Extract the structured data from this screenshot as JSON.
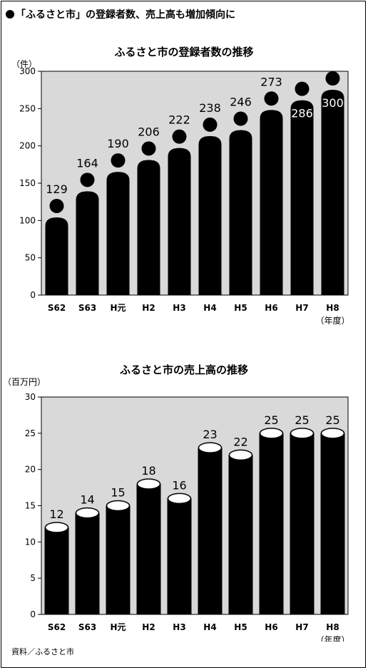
{
  "headline": "「ふるさと市」の登録者数、売上高も増加傾向に",
  "source": "資料／ふるさと市",
  "colors": {
    "plot_bg": "#d9d9d9",
    "bar": "#000000",
    "label_on_bar": "#ffffff"
  },
  "chart_data": [
    {
      "type": "bar",
      "style": "pictogram-people",
      "title": "ふるさと市の登録者数の推移",
      "ylabel": "（件）",
      "xlabel": "（年度）",
      "categories": [
        "S62",
        "S63",
        "H元",
        "H2",
        "H3",
        "H4",
        "H5",
        "H6",
        "H7",
        "H8"
      ],
      "values": [
        129,
        164,
        190,
        206,
        222,
        238,
        246,
        273,
        286,
        300
      ],
      "data_labels": [
        "129",
        "164",
        "190",
        "206",
        "222",
        "238",
        "246",
        "273",
        "286",
        "300"
      ],
      "yticks": [
        "0",
        "50",
        "100",
        "150",
        "200",
        "250",
        "300"
      ],
      "ylim": [
        0,
        300
      ],
      "grid": false
    },
    {
      "type": "bar",
      "style": "cylinder",
      "title": "ふるさと市の売上高の推移",
      "ylabel": "（百万円）",
      "xlabel": "（年度）",
      "categories": [
        "S62",
        "S63",
        "H元",
        "H2",
        "H3",
        "H4",
        "H5",
        "H6",
        "H7",
        "H8"
      ],
      "values": [
        12,
        14,
        15,
        18,
        16,
        23,
        22,
        25,
        25,
        25
      ],
      "data_labels": [
        "12",
        "14",
        "15",
        "18",
        "16",
        "23",
        "22",
        "25",
        "25",
        "25"
      ],
      "yticks": [
        "0",
        "5",
        "10",
        "15",
        "20",
        "25",
        "30"
      ],
      "ylim": [
        0,
        30
      ],
      "grid": false
    }
  ]
}
